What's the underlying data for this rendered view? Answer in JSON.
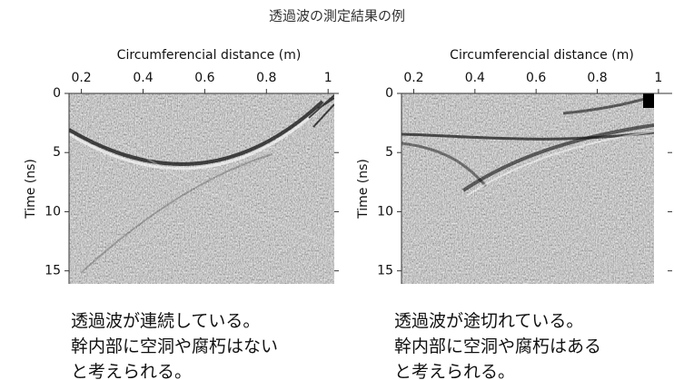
{
  "title": "透過波の測定結果の例",
  "chart_data": [
    {
      "type": "radargram",
      "xlabel": "Circumferencial distance (m)",
      "ylabel": "Time (ns)",
      "xlim": [
        0.16,
        1.02
      ],
      "ylim": [
        0,
        16.1
      ],
      "y_inverted": true,
      "xticks": [
        0.2,
        0.4,
        0.6,
        0.8,
        1
      ],
      "yticks": [
        0,
        5,
        10,
        15
      ],
      "caption": [
        "透過波が連続している。",
        "幹内部に空洞や腐朽はない",
        "と考えられる。"
      ]
    },
    {
      "type": "radargram",
      "xlabel": "Circumferencial distance (m)",
      "ylabel": "Time (ns)",
      "xlim": [
        0.16,
        1.03
      ],
      "ylim": [
        0,
        16.1
      ],
      "y_inverted": true,
      "xticks": [
        0.2,
        0.4,
        0.6,
        0.8,
        1
      ],
      "yticks": [
        0,
        5,
        10,
        15
      ],
      "caption": [
        "透過波が途切れている。",
        "幹内部に空洞や腐朽はある",
        "と考えられる。"
      ]
    }
  ]
}
